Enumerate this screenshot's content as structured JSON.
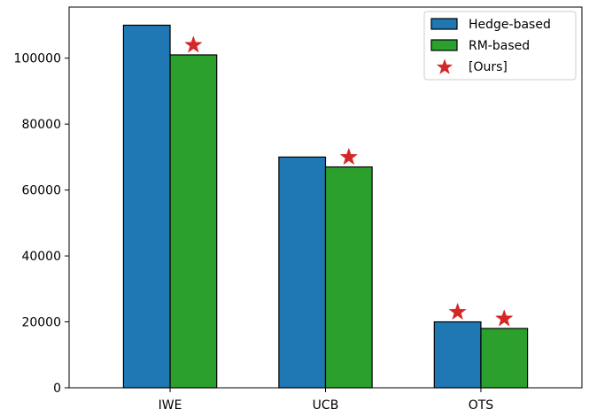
{
  "chart_data": {
    "type": "bar",
    "categories": [
      "IWE",
      "UCB",
      "OTS"
    ],
    "series": [
      {
        "name": "Hedge-based",
        "values": [
          110000,
          70000,
          20000
        ],
        "color": "#1f77b4"
      },
      {
        "name": "RM-based",
        "values": [
          101000,
          67000,
          18000
        ],
        "color": "#2ca02c"
      }
    ],
    "markers": {
      "name": "[Ours]",
      "symbol": "star",
      "color": "#d62728",
      "points": [
        {
          "category": "IWE",
          "series": "RM-based"
        },
        {
          "category": "UCB",
          "series": "RM-based"
        },
        {
          "category": "OTS",
          "series": "Hedge-based"
        },
        {
          "category": "OTS",
          "series": "RM-based"
        }
      ]
    },
    "yticks": [
      0,
      20000,
      40000,
      60000,
      80000,
      100000
    ],
    "ylim": [
      0,
      115500
    ],
    "title": "",
    "xlabel": "",
    "ylabel": "",
    "legend": "top-right",
    "grid": false
  }
}
